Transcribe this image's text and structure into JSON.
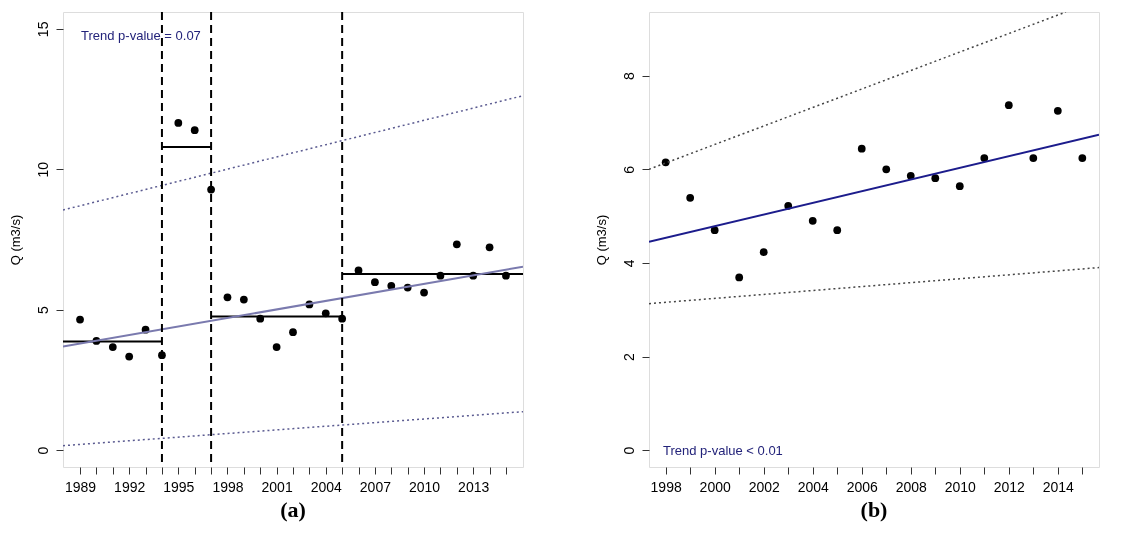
{
  "chart_data": [
    {
      "type": "scatter",
      "title": "(a)",
      "ylabel": "Q (m3/s)",
      "grid": false,
      "xlim": [
        1987.96,
        2016.04
      ],
      "ylim": [
        -0.6,
        15.6
      ],
      "xticks": [
        1989,
        {
          "value": 1990,
          "label": null
        },
        {
          "value": 1991,
          "label": null
        },
        1992,
        {
          "value": 1993,
          "label": null
        },
        {
          "value": 1994,
          "label": null
        },
        1995,
        {
          "value": 1996,
          "label": null
        },
        {
          "value": 1997,
          "label": null
        },
        1998,
        {
          "value": 1999,
          "label": null
        },
        {
          "value": 2000,
          "label": null
        },
        2001,
        {
          "value": 2002,
          "label": null
        },
        {
          "value": 2003,
          "label": null
        },
        2004,
        {
          "value": 2005,
          "label": null
        },
        {
          "value": 2006,
          "label": null
        },
        2007,
        {
          "value": 2008,
          "label": null
        },
        {
          "value": 2009,
          "label": null
        },
        2010,
        {
          "value": 2011,
          "label": null
        },
        {
          "value": 2012,
          "label": null
        },
        2013,
        {
          "value": 2014,
          "label": null
        },
        {
          "value": 2015,
          "label": null
        }
      ],
      "yticks": [
        0,
        5,
        10,
        15
      ],
      "annotations": [
        "Trend p-value = 0.07"
      ],
      "ref_lines": [
        {
          "axis": "x",
          "value": 1994,
          "color": "#000000",
          "line_style": "dashed"
        },
        {
          "axis": "x",
          "value": 1997,
          "color": "#000000",
          "line_style": "dashed"
        },
        {
          "axis": "x",
          "value": 2005,
          "color": "#000000",
          "line_style": "dashed"
        }
      ],
      "series": [
        {
          "marker": "circle",
          "color": "#000000",
          "x": [
            1989,
            1990,
            1991,
            1992,
            1993,
            1994,
            1995,
            1996,
            1997,
            1998,
            1999,
            2000,
            2001,
            2002,
            2003,
            2004,
            2005,
            2006,
            2007,
            2008,
            2009,
            2010,
            2011,
            2012,
            2013,
            2014,
            2015
          ],
          "values": [
            4.65,
            3.89,
            3.67,
            3.33,
            4.29,
            3.38,
            11.65,
            11.39,
            9.28,
            5.44,
            5.36,
            4.68,
            3.67,
            4.2,
            5.19,
            4.87,
            4.68,
            6.4,
            5.98,
            5.85,
            5.79,
            5.61,
            6.21,
            7.33,
            6.21,
            7.22,
            6.21
          ]
        },
        {
          "type": "line",
          "color": "#000000",
          "line_style": "solid",
          "x": [
            1987.96,
            1994
          ],
          "values": [
            3.87,
            3.87
          ]
        },
        {
          "type": "line",
          "color": "#000000",
          "line_style": "solid",
          "x": [
            1994,
            1997
          ],
          "values": [
            10.79,
            10.79
          ]
        },
        {
          "type": "line",
          "color": "#000000",
          "line_style": "solid",
          "x": [
            1997,
            2005
          ],
          "values": [
            4.76,
            4.76
          ]
        },
        {
          "type": "line",
          "color": "#000000",
          "line_style": "solid",
          "x": [
            2005,
            2016.04
          ],
          "values": [
            6.27,
            6.27
          ]
        },
        {
          "type": "line",
          "color": "#7a7aae",
          "line_style": "solid",
          "x": [
            1987.96,
            2016.04
          ],
          "values": [
            3.69,
            6.53
          ]
        },
        {
          "type": "line",
          "color": "#5a5a90",
          "line_style": "dotted",
          "x": [
            1987.96,
            2016.04
          ],
          "values": [
            8.55,
            12.62
          ]
        },
        {
          "type": "line",
          "color": "#5a5a90",
          "line_style": "dotted",
          "x": [
            1987.96,
            2016.04
          ],
          "values": [
            0.16,
            1.37
          ]
        }
      ]
    },
    {
      "type": "scatter",
      "title": "(b)",
      "ylabel": "Q (m3/s)",
      "grid": false,
      "xlim": [
        1997.32,
        2015.68
      ],
      "ylim": [
        -0.36,
        9.36
      ],
      "xticks": [
        1998,
        {
          "value": 1999,
          "label": null
        },
        2000,
        {
          "value": 2001,
          "label": null
        },
        2002,
        {
          "value": 2003,
          "label": null
        },
        2004,
        {
          "value": 2005,
          "label": null
        },
        2006,
        {
          "value": 2007,
          "label": null
        },
        2008,
        {
          "value": 2009,
          "label": null
        },
        2010,
        {
          "value": 2011,
          "label": null
        },
        2012,
        {
          "value": 2013,
          "label": null
        },
        2014,
        {
          "value": 2015,
          "label": null
        }
      ],
      "yticks": [
        0,
        2,
        4,
        6,
        8
      ],
      "annotations": [
        "Trend p-value < 0.01"
      ],
      "series": [
        {
          "marker": "circle",
          "color": "#000000",
          "x": [
            1998,
            1999,
            2000,
            2001,
            2002,
            2003,
            2004,
            2005,
            2006,
            2007,
            2008,
            2009,
            2010,
            2011,
            2012,
            2013,
            2014,
            2015
          ],
          "values": [
            6.15,
            5.39,
            4.7,
            3.69,
            4.23,
            5.22,
            4.9,
            4.7,
            6.44,
            6.0,
            5.86,
            5.81,
            5.64,
            6.24,
            7.37,
            6.24,
            7.25,
            6.24
          ]
        },
        {
          "type": "line",
          "color": "#1c1c8c",
          "line_style": "solid",
          "x": [
            1997.32,
            2015.68
          ],
          "values": [
            4.45,
            6.74
          ]
        },
        {
          "type": "line",
          "color": "#444444",
          "line_style": "dotted",
          "x": [
            1997.32,
            2014.33
          ],
          "values": [
            6.0,
            9.36
          ]
        },
        {
          "type": "line",
          "color": "#444444",
          "line_style": "dotted",
          "x": [
            1997.32,
            2015.68
          ],
          "values": [
            3.13,
            3.9
          ]
        }
      ]
    }
  ]
}
